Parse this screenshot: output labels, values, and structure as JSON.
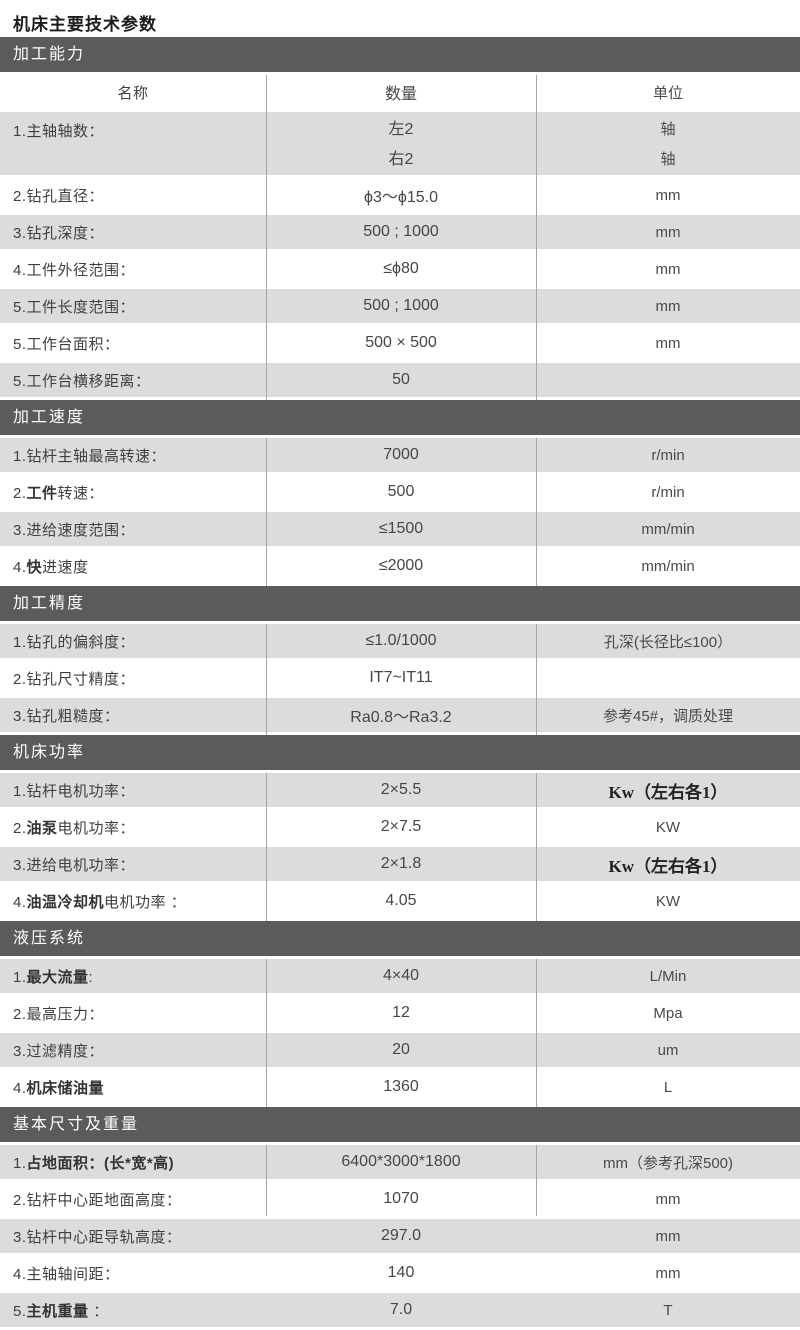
{
  "page_title": "机床主要技术参数",
  "colors": {
    "section_bar_bg": "#5d5a5a",
    "section_bar_text": "#ffffff",
    "row_gray_bg": "#dcdcdb",
    "row_white_bg": "#ffffff",
    "divider": "#a6a6a6",
    "text": "#3f3f3f"
  },
  "sections": [
    {
      "title": "加工能力",
      "header_row": {
        "name": "名称",
        "qty": "数量",
        "unit": "单位"
      },
      "rows": [
        {
          "label": [
            [
              "1.主轴轴数：",
              0
            ]
          ],
          "values": [
            "左2",
            "右2"
          ],
          "units": [
            "轴",
            "轴"
          ],
          "tall": true
        },
        {
          "label": [
            [
              "2.钻孔直径：",
              0
            ]
          ],
          "values": [
            "ϕ3～ϕ15.0"
          ],
          "units": [
            "mm"
          ]
        },
        {
          "label": [
            [
              "3.钻孔深度：",
              0
            ]
          ],
          "values": [
            "500 ; 1000"
          ],
          "units": [
            "mm"
          ]
        },
        {
          "label": [
            [
              "4.工件外径范围：",
              0
            ]
          ],
          "values": [
            "≤ϕ80"
          ],
          "units": [
            "mm"
          ]
        },
        {
          "label": [
            [
              "5.工件长度范围：",
              0
            ]
          ],
          "values": [
            "500 ; 1000"
          ],
          "units": [
            "mm"
          ]
        },
        {
          "label": [
            [
              "5.工作台面积：",
              0
            ]
          ],
          "values": [
            "500 × 500"
          ],
          "units": [
            "mm"
          ]
        },
        {
          "label": [
            [
              "5.工作台横移距离：",
              0
            ]
          ],
          "values": [
            "50"
          ],
          "units": [
            ""
          ]
        }
      ]
    },
    {
      "title": "加工速度",
      "rows": [
        {
          "label": [
            [
              "1.钻杆主轴最高转速：",
              0
            ]
          ],
          "values": [
            "7000"
          ],
          "units": [
            "r/min"
          ]
        },
        {
          "label": [
            [
              "2.",
              0
            ],
            [
              "工件",
              1
            ],
            [
              "转速：",
              0
            ]
          ],
          "values": [
            "500"
          ],
          "units": [
            "r/min"
          ]
        },
        {
          "label": [
            [
              "3.进给速度范围：",
              0
            ]
          ],
          "values": [
            "≤1500"
          ],
          "units": [
            "mm/min"
          ]
        },
        {
          "label": [
            [
              "4.",
              0
            ],
            [
              "快",
              1
            ],
            [
              "进速度",
              0
            ]
          ],
          "values": [
            "≤2000"
          ],
          "units": [
            "mm/min"
          ]
        }
      ]
    },
    {
      "title": "加工精度",
      "rows": [
        {
          "label": [
            [
              "1.钻孔的偏斜度：",
              0
            ]
          ],
          "values": [
            "≤1.0/1000"
          ],
          "units": [
            "孔深(长径比≤100）"
          ]
        },
        {
          "label": [
            [
              "2.钻孔尺寸精度：",
              0
            ]
          ],
          "values": [
            "IT7~IT11"
          ],
          "units": [
            ""
          ]
        },
        {
          "label": [
            [
              "3.钻孔粗糙度：",
              0
            ]
          ],
          "values": [
            "Ra0.8～Ra3.2"
          ],
          "units": [
            "参考45#，调质处理"
          ]
        }
      ]
    },
    {
      "title": "机床功率",
      "rows": [
        {
          "label": [
            [
              "1.钻杆电机功率：",
              0
            ]
          ],
          "values": [
            "2×5.5"
          ],
          "units": [
            "Kw（左右各1）"
          ],
          "unit_bold": true
        },
        {
          "label": [
            [
              "2.",
              0
            ],
            [
              "油泵",
              1
            ],
            [
              "电机功率：",
              0
            ]
          ],
          "values": [
            "2×7.5"
          ],
          "units": [
            "KW"
          ]
        },
        {
          "label": [
            [
              "3.进给电机功率：",
              0
            ]
          ],
          "values": [
            "2×1.8"
          ],
          "units": [
            "Kw（左右各1）"
          ],
          "unit_bold": true
        },
        {
          "label": [
            [
              "4.",
              0
            ],
            [
              "油温冷却机",
              1
            ],
            [
              "电机功率 ：",
              0
            ]
          ],
          "values": [
            "4.05"
          ],
          "units": [
            "KW"
          ]
        }
      ]
    },
    {
      "title": "液压系统",
      "rows": [
        {
          "label": [
            [
              "1.",
              0
            ],
            [
              "最大流量",
              1
            ],
            [
              ":",
              0
            ]
          ],
          "values": [
            "4×40"
          ],
          "units": [
            "L/Min"
          ]
        },
        {
          "label": [
            [
              "2.最高压力：",
              0
            ]
          ],
          "values": [
            "12"
          ],
          "units": [
            "Mpa"
          ]
        },
        {
          "label": [
            [
              "3.过滤精度：",
              0
            ]
          ],
          "values": [
            "20"
          ],
          "units": [
            "um"
          ]
        },
        {
          "label": [
            [
              "4.",
              0
            ],
            [
              "机床储油量",
              1
            ]
          ],
          "values": [
            "1360"
          ],
          "units": [
            "L"
          ]
        }
      ]
    },
    {
      "title": "基本尺寸及重量",
      "divider_rows": 2,
      "rows": [
        {
          "label": [
            [
              "1.",
              0
            ],
            [
              "占地面积：(长*宽*高)",
              1
            ]
          ],
          "values": [
            "6400*3000*1800"
          ],
          "units": [
            "mm（参考孔深500)"
          ]
        },
        {
          "label": [
            [
              "2.钻杆中心距地面高度：",
              0
            ]
          ],
          "values": [
            "1070"
          ],
          "units": [
            "mm"
          ]
        },
        {
          "label": [
            [
              "3.钻杆中心距导轨高度：",
              0
            ]
          ],
          "values": [
            "297.0"
          ],
          "units": [
            "mm"
          ]
        },
        {
          "label": [
            [
              "4.主轴轴间距：",
              0
            ]
          ],
          "values": [
            "140"
          ],
          "units": [
            "mm"
          ]
        },
        {
          "label": [
            [
              "5.",
              0
            ],
            [
              "主机重量",
              1
            ],
            [
              " ：",
              0
            ]
          ],
          "values": [
            "7.0"
          ],
          "units": [
            "T"
          ]
        }
      ]
    }
  ]
}
